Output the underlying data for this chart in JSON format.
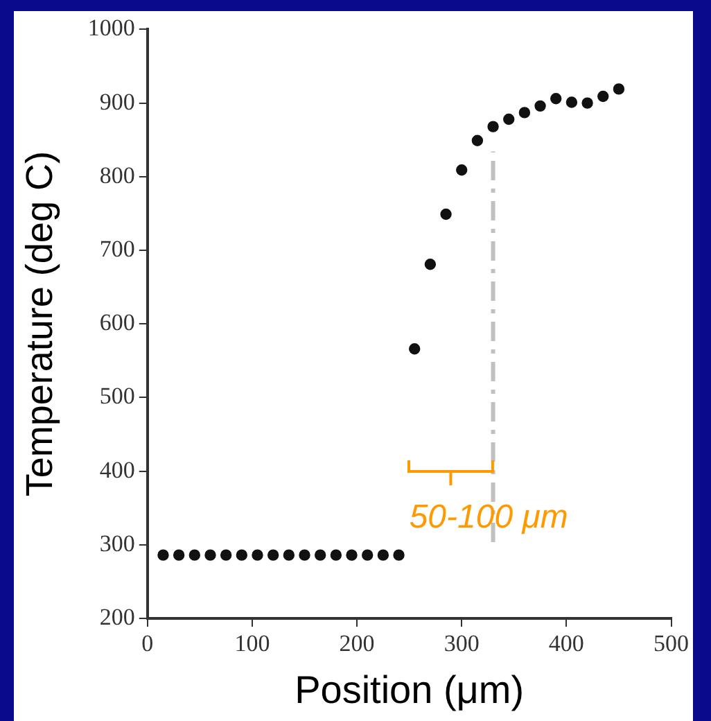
{
  "chart_data": {
    "type": "scatter",
    "xlabel": "Position (μm)",
    "ylabel": "Temperature (deg C)",
    "x": [
      15,
      30,
      45,
      60,
      75,
      90,
      105,
      120,
      135,
      150,
      165,
      180,
      195,
      210,
      225,
      240,
      255,
      270,
      285,
      300,
      315,
      330,
      345,
      360,
      375,
      390,
      405,
      420,
      435,
      450
    ],
    "series": [
      {
        "color": "#111111",
        "values": [
          286,
          286,
          286,
          286,
          286,
          286,
          286,
          286,
          286,
          286,
          286,
          286,
          286,
          286,
          286,
          286,
          566,
          681,
          749,
          809,
          849,
          868,
          878,
          887,
          896,
          906,
          901,
          900,
          909,
          919
        ]
      }
    ],
    "xlim": [
      0,
      500
    ],
    "xticks": [
      0,
      100,
      200,
      300,
      400,
      500
    ],
    "ylim": [
      200,
      1000
    ],
    "yticks": [
      200,
      300,
      400,
      500,
      600,
      700,
      800,
      900,
      1000
    ],
    "ref_lines": [
      {
        "axis": "x",
        "value": 330,
        "color": "#c0c0c0",
        "line_style": "dashdot"
      }
    ],
    "annotations": [
      "50-100 μm"
    ],
    "marker": "circle",
    "grid": false,
    "legend": false
  }
}
